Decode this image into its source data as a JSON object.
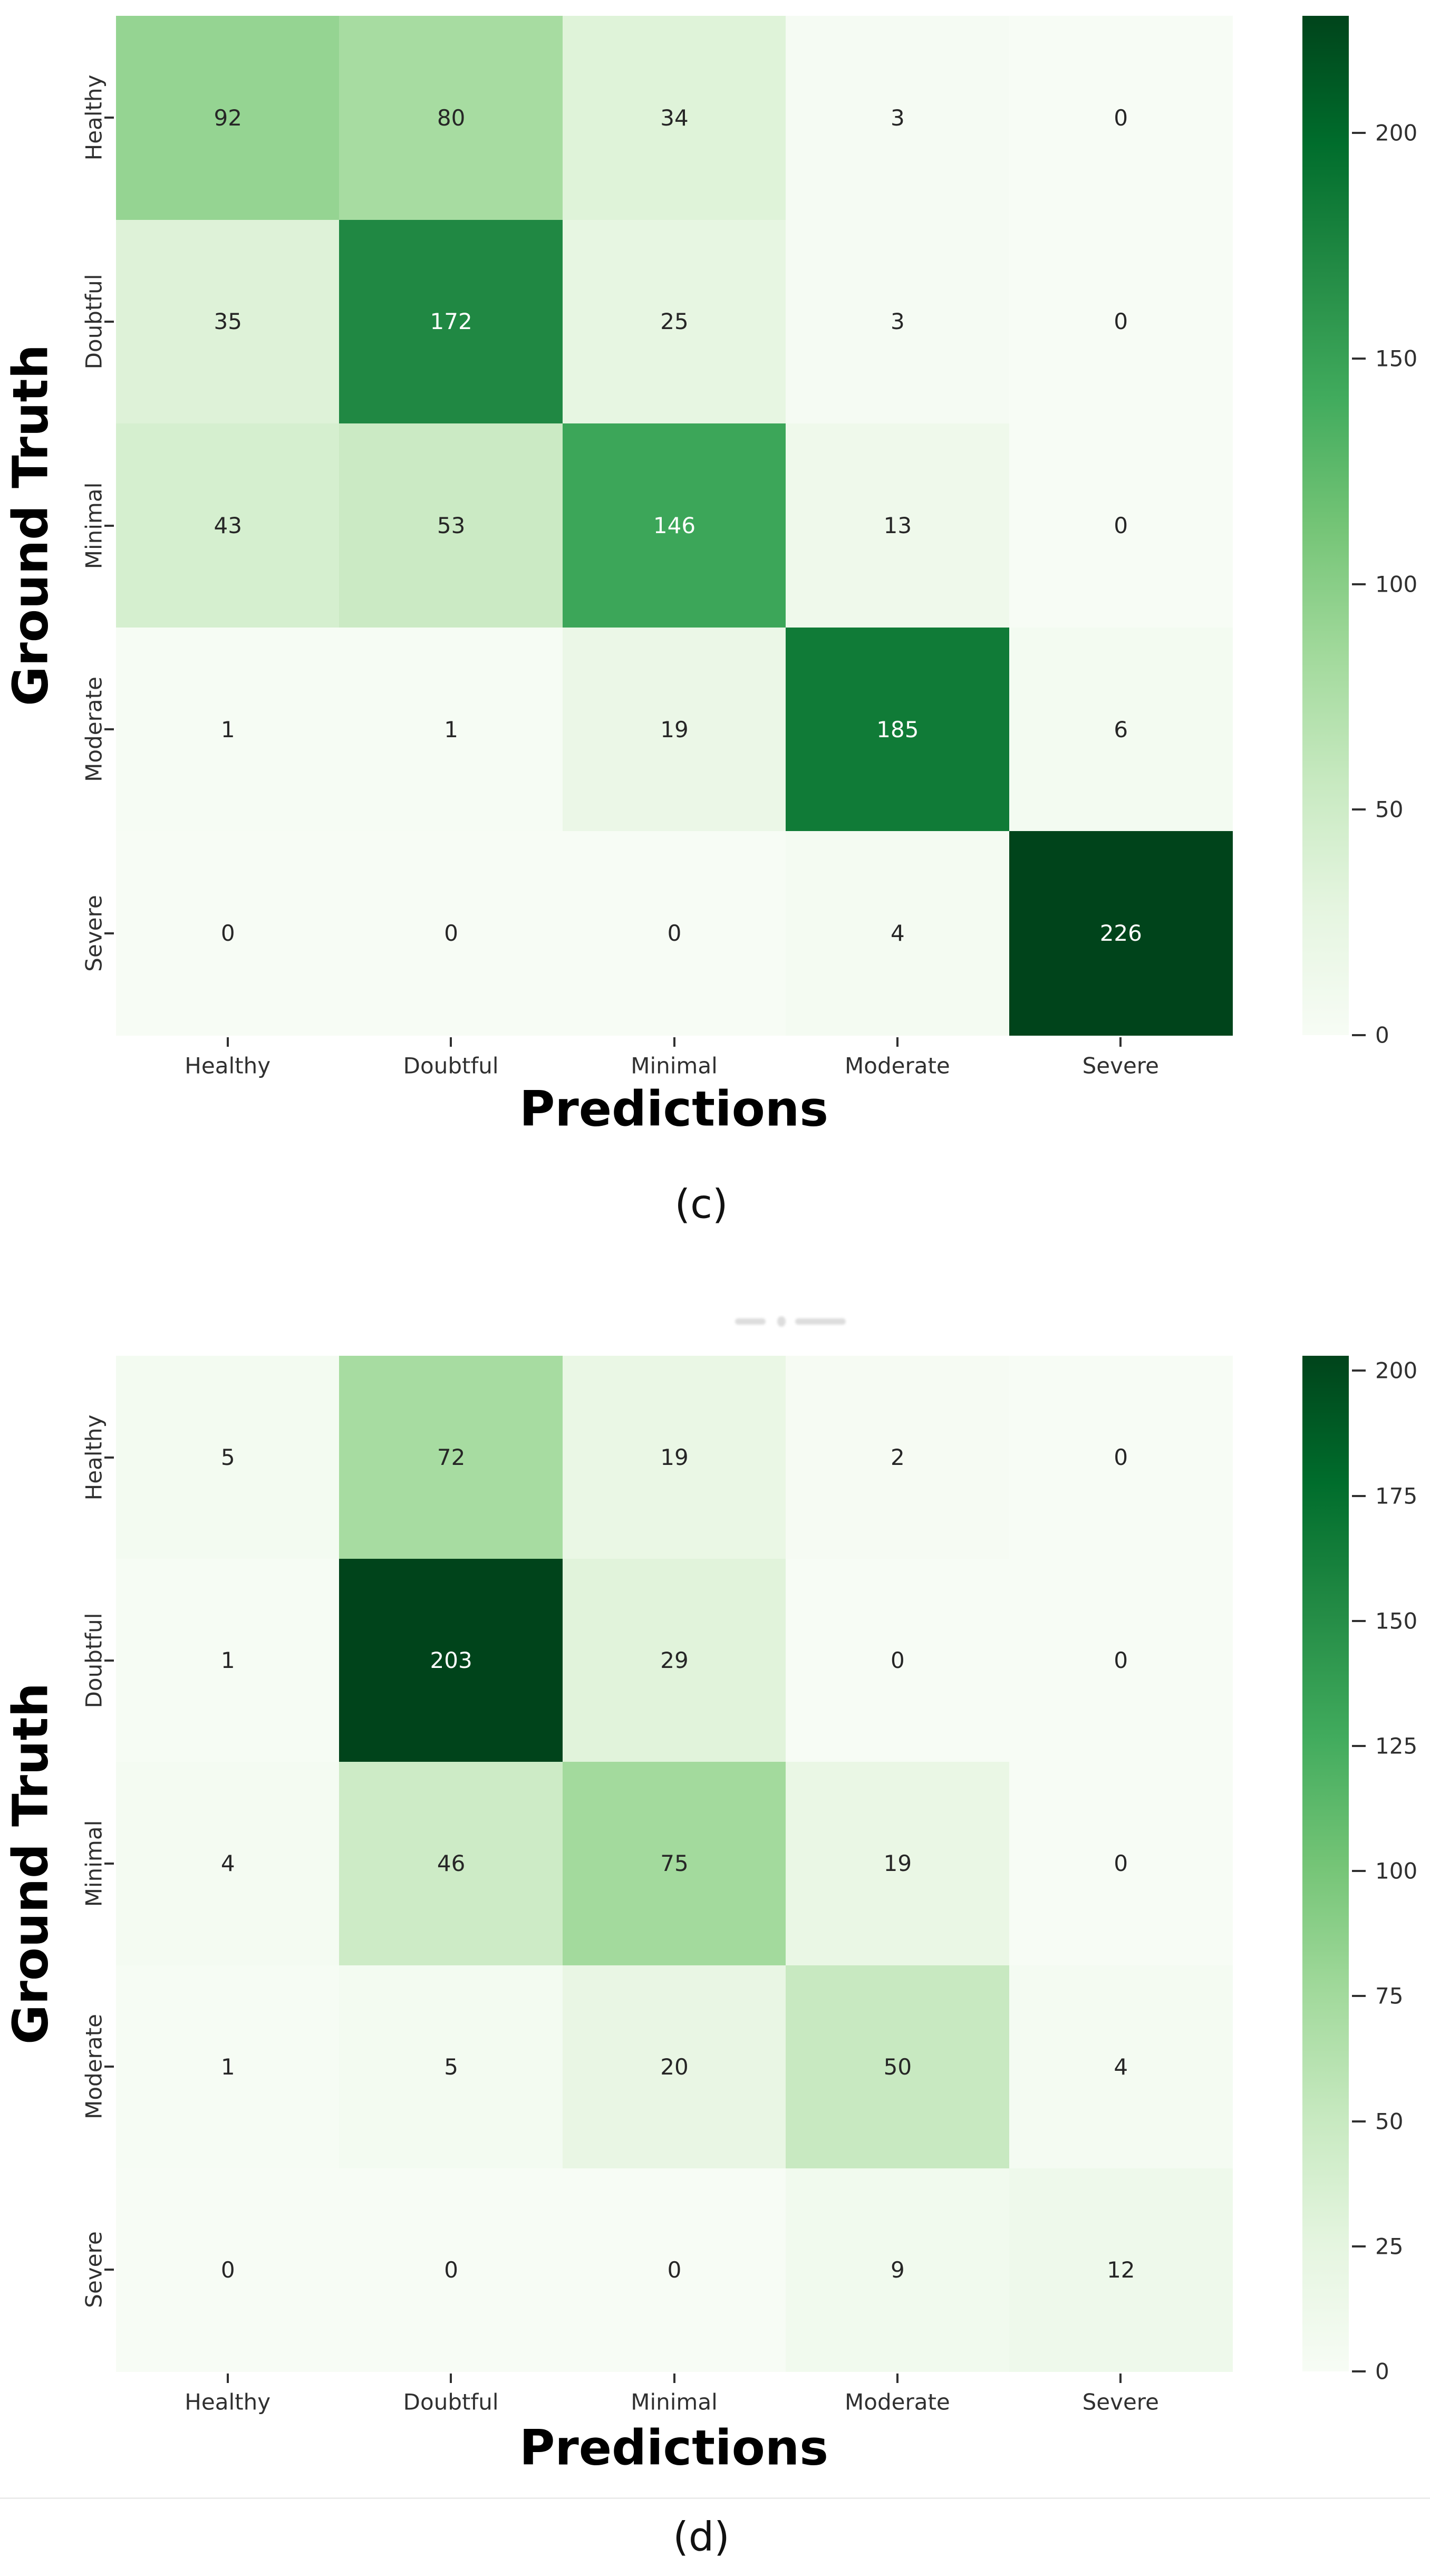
{
  "colors": {
    "background": "#ffffff",
    "colormap": "Greens",
    "colormap_stops": [
      "#f7fcf5",
      "#e5f5e0",
      "#c7e9c0",
      "#a1d99b",
      "#74c476",
      "#41ab5d",
      "#238b45",
      "#006d2c",
      "#00441b"
    ],
    "annotation_dark": "#262626",
    "annotation_light": "#ffffff",
    "tick_label": "#303030",
    "axis_label": "#000000",
    "divider_line": "#ececec"
  },
  "chart_data": [
    {
      "type": "heatmap",
      "panel_label": "(c)",
      "title": "",
      "xlabel": "Predictions",
      "ylabel": "Ground Truth",
      "x_categories": [
        "Healthy",
        "Doubtful",
        "Minimal",
        "Moderate",
        "Severe"
      ],
      "y_categories": [
        "Healthy",
        "Doubtful",
        "Minimal",
        "Moderate",
        "Severe"
      ],
      "matrix": [
        [
          92,
          80,
          34,
          3,
          0
        ],
        [
          35,
          172,
          25,
          3,
          0
        ],
        [
          43,
          53,
          146,
          13,
          0
        ],
        [
          1,
          1,
          19,
          185,
          6
        ],
        [
          0,
          0,
          0,
          4,
          226
        ]
      ],
      "vmin": 0,
      "vmax": 226,
      "colorbar_ticks": [
        0,
        50,
        100,
        150,
        200
      ],
      "colormap": "Greens",
      "grid": false,
      "legend_position": "right-colorbar"
    },
    {
      "type": "heatmap",
      "panel_label": "(d)",
      "title": "",
      "xlabel": "Predictions",
      "ylabel": "Ground Truth",
      "x_categories": [
        "Healthy",
        "Doubtful",
        "Minimal",
        "Moderate",
        "Severe"
      ],
      "y_categories": [
        "Healthy",
        "Doubtful",
        "Minimal",
        "Moderate",
        "Severe"
      ],
      "matrix": [
        [
          5,
          72,
          19,
          2,
          0
        ],
        [
          1,
          203,
          29,
          0,
          0
        ],
        [
          4,
          46,
          75,
          19,
          0
        ],
        [
          1,
          5,
          20,
          50,
          4
        ],
        [
          0,
          0,
          0,
          9,
          12
        ]
      ],
      "vmin": 0,
      "vmax": 203,
      "colorbar_ticks": [
        0,
        25,
        50,
        75,
        100,
        125,
        150,
        175,
        200
      ],
      "colormap": "Greens",
      "grid": false,
      "legend_position": "right-colorbar"
    }
  ]
}
